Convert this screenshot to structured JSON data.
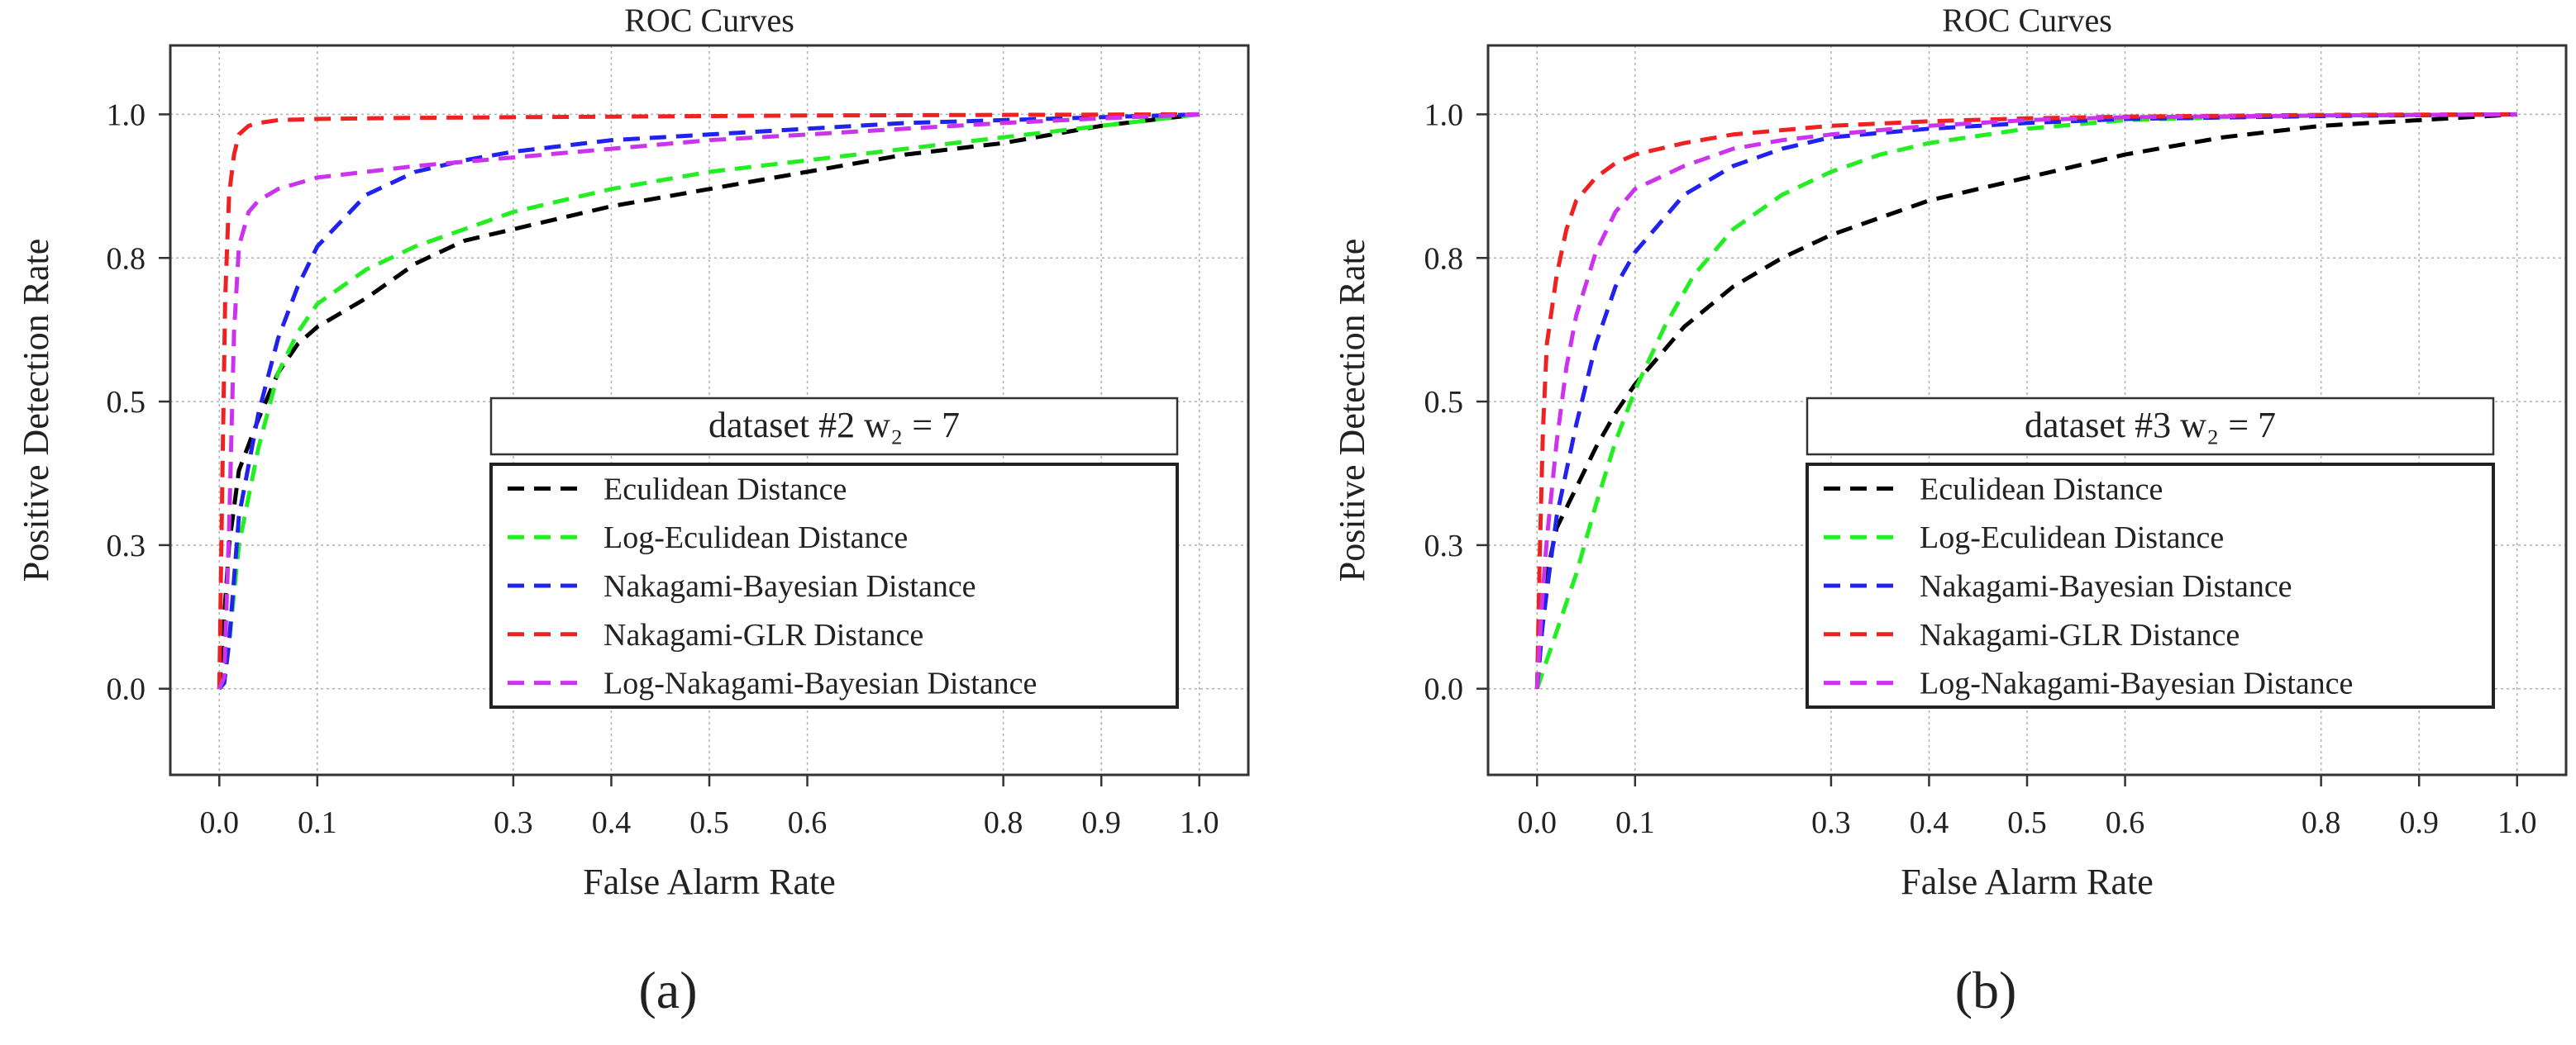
{
  "chart_data": [
    {
      "type": "line",
      "panel_label": "(a)",
      "title": "ROC Curves",
      "xlabel": "False Alarm Rate",
      "ylabel": "Positive Detection Rate",
      "xlim": [
        -0.05,
        1.05
      ],
      "ylim": [
        -0.15,
        1.12
      ],
      "xticks": [
        0.0,
        0.1,
        0.3,
        0.4,
        0.5,
        0.6,
        0.8,
        0.9,
        1.0
      ],
      "xtick_labels": [
        "0.0",
        "0.1",
        "0.3",
        "0.4",
        "0.5",
        "0.6",
        "0.8",
        "0.9",
        "1.0"
      ],
      "yticks": [
        0.0,
        0.25,
        0.5,
        0.75,
        1.0
      ],
      "ytick_labels": [
        "0.0",
        "0.3",
        "0.5",
        "0.8",
        "1.0"
      ],
      "grid": true,
      "legend_title": "dataset #2 w₂ = 7",
      "legend_position": "lower-right",
      "series": [
        {
          "name": "Eculidean Distance",
          "color": "#000000",
          "x": [
            0,
            0.01,
            0.02,
            0.04,
            0.06,
            0.08,
            0.1,
            0.15,
            0.2,
            0.25,
            0.3,
            0.4,
            0.5,
            0.6,
            0.7,
            0.8,
            0.9,
            1.0
          ],
          "y": [
            0,
            0.25,
            0.38,
            0.47,
            0.55,
            0.6,
            0.63,
            0.68,
            0.74,
            0.78,
            0.8,
            0.84,
            0.87,
            0.9,
            0.93,
            0.95,
            0.98,
            1.0
          ]
        },
        {
          "name": "Log-Eculidean Distance",
          "color": "#22ee22",
          "x": [
            0,
            0.005,
            0.01,
            0.02,
            0.04,
            0.06,
            0.08,
            0.1,
            0.15,
            0.2,
            0.25,
            0.3,
            0.4,
            0.5,
            0.6,
            0.7,
            0.8,
            0.9,
            1.0
          ],
          "y": [
            0,
            0.01,
            0.08,
            0.25,
            0.42,
            0.55,
            0.62,
            0.67,
            0.73,
            0.77,
            0.8,
            0.83,
            0.87,
            0.9,
            0.92,
            0.94,
            0.96,
            0.98,
            1.0
          ]
        },
        {
          "name": "Nakagami-Bayesian Distance",
          "color": "#2222ee",
          "x": [
            0,
            0.005,
            0.01,
            0.02,
            0.04,
            0.06,
            0.08,
            0.1,
            0.15,
            0.2,
            0.25,
            0.3,
            0.35,
            0.4,
            0.5,
            0.6,
            0.7,
            0.8,
            0.9,
            1.0
          ],
          "y": [
            0,
            0.01,
            0.08,
            0.3,
            0.48,
            0.61,
            0.7,
            0.77,
            0.86,
            0.9,
            0.92,
            0.935,
            0.945,
            0.955,
            0.965,
            0.975,
            0.985,
            0.99,
            0.995,
            1.0
          ]
        },
        {
          "name": "Nakagami-GLR Distance",
          "color": "#ee2222",
          "x": [
            0,
            0.003,
            0.006,
            0.01,
            0.015,
            0.02,
            0.03,
            0.04,
            0.06,
            0.1,
            0.2,
            0.4,
            0.6,
            0.8,
            1.0
          ],
          "y": [
            0,
            0.35,
            0.68,
            0.86,
            0.93,
            0.965,
            0.98,
            0.985,
            0.99,
            0.992,
            0.994,
            0.996,
            0.998,
            0.999,
            1.0
          ]
        },
        {
          "name": "Log-Nakagami-Bayesian Distance",
          "color": "#cc33ee",
          "x": [
            0,
            0.005,
            0.01,
            0.015,
            0.02,
            0.03,
            0.04,
            0.06,
            0.08,
            0.1,
            0.15,
            0.2,
            0.3,
            0.4,
            0.5,
            0.6,
            0.7,
            0.8,
            0.9,
            1.0
          ],
          "y": [
            0,
            0.02,
            0.28,
            0.62,
            0.77,
            0.83,
            0.85,
            0.87,
            0.88,
            0.89,
            0.9,
            0.91,
            0.925,
            0.94,
            0.955,
            0.965,
            0.975,
            0.985,
            0.993,
            1.0
          ]
        }
      ]
    },
    {
      "type": "line",
      "panel_label": "(b)",
      "title": "ROC Curves",
      "xlabel": "False Alarm Rate",
      "ylabel": "Positive Detection Rate",
      "xlim": [
        -0.05,
        1.05
      ],
      "ylim": [
        -0.15,
        1.12
      ],
      "xticks": [
        0.0,
        0.1,
        0.3,
        0.4,
        0.5,
        0.6,
        0.8,
        0.9,
        1.0
      ],
      "xtick_labels": [
        "0.0",
        "0.1",
        "0.3",
        "0.4",
        "0.5",
        "0.6",
        "0.8",
        "0.9",
        "1.0"
      ],
      "yticks": [
        0.0,
        0.25,
        0.5,
        0.75,
        1.0
      ],
      "ytick_labels": [
        "0.0",
        "0.3",
        "0.5",
        "0.8",
        "1.0"
      ],
      "grid": true,
      "legend_title": "dataset #3 w₂ = 7",
      "legend_position": "lower-right",
      "series": [
        {
          "name": "Eculidean Distance",
          "color": "#000000",
          "x": [
            0,
            0.01,
            0.02,
            0.04,
            0.06,
            0.08,
            0.1,
            0.15,
            0.2,
            0.25,
            0.3,
            0.4,
            0.5,
            0.6,
            0.7,
            0.8,
            0.9,
            1.0
          ],
          "y": [
            0,
            0.2,
            0.28,
            0.35,
            0.42,
            0.48,
            0.53,
            0.63,
            0.7,
            0.75,
            0.79,
            0.85,
            0.89,
            0.93,
            0.96,
            0.98,
            0.99,
            1.0
          ]
        },
        {
          "name": "Log-Eculidean Distance",
          "color": "#22ee22",
          "x": [
            0,
            0.02,
            0.04,
            0.06,
            0.08,
            0.1,
            0.13,
            0.16,
            0.2,
            0.25,
            0.3,
            0.35,
            0.4,
            0.5,
            0.6,
            0.7,
            0.8,
            1.0
          ],
          "y": [
            0,
            0.1,
            0.2,
            0.32,
            0.43,
            0.52,
            0.63,
            0.72,
            0.8,
            0.86,
            0.9,
            0.93,
            0.95,
            0.975,
            0.99,
            0.995,
            0.998,
            1.0
          ]
        },
        {
          "name": "Nakagami-Bayesian Distance",
          "color": "#2222ee",
          "x": [
            0,
            0.005,
            0.01,
            0.02,
            0.04,
            0.06,
            0.08,
            0.1,
            0.15,
            0.2,
            0.25,
            0.3,
            0.4,
            0.5,
            0.6,
            0.8,
            1.0
          ],
          "y": [
            0,
            0.1,
            0.17,
            0.3,
            0.46,
            0.6,
            0.7,
            0.76,
            0.86,
            0.91,
            0.94,
            0.96,
            0.975,
            0.985,
            0.992,
            0.997,
            1.0
          ]
        },
        {
          "name": "Nakagami-GLR Distance",
          "color": "#ee2222",
          "x": [
            0,
            0.003,
            0.006,
            0.01,
            0.02,
            0.03,
            0.04,
            0.06,
            0.08,
            0.1,
            0.15,
            0.2,
            0.3,
            0.4,
            0.5,
            0.6,
            0.8,
            1.0
          ],
          "y": [
            0,
            0.25,
            0.45,
            0.6,
            0.72,
            0.8,
            0.85,
            0.89,
            0.915,
            0.93,
            0.95,
            0.965,
            0.98,
            0.988,
            0.993,
            0.996,
            0.999,
            1.0
          ]
        },
        {
          "name": "Log-Nakagami-Bayesian Distance",
          "color": "#cc33ee",
          "x": [
            0,
            0.005,
            0.01,
            0.02,
            0.03,
            0.04,
            0.06,
            0.08,
            0.1,
            0.15,
            0.2,
            0.25,
            0.3,
            0.4,
            0.5,
            0.6,
            0.8,
            1.0
          ],
          "y": [
            0,
            0.15,
            0.26,
            0.43,
            0.56,
            0.65,
            0.76,
            0.83,
            0.87,
            0.91,
            0.94,
            0.955,
            0.965,
            0.98,
            0.99,
            0.995,
            0.998,
            1.0
          ]
        }
      ]
    }
  ]
}
